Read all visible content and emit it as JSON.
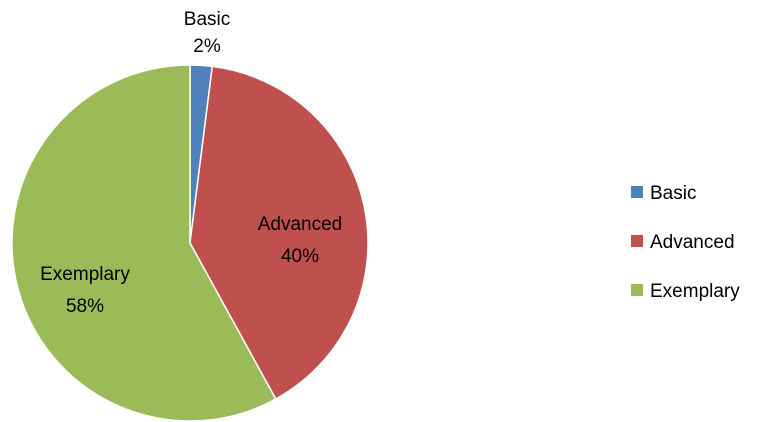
{
  "chart_data": {
    "type": "pie",
    "title": "",
    "categories": [
      "Basic",
      "Advanced",
      "Exemplary"
    ],
    "values": [
      2,
      40,
      58
    ],
    "data_labels": [
      "2%",
      "40%",
      "58%"
    ],
    "colors": [
      "#4f81bd",
      "#c0504d",
      "#9bbb59"
    ],
    "start_angle_deg": 0,
    "direction": "clockwise",
    "legend": {
      "position": "right",
      "entries": [
        "Basic",
        "Advanced",
        "Exemplary"
      ]
    }
  }
}
